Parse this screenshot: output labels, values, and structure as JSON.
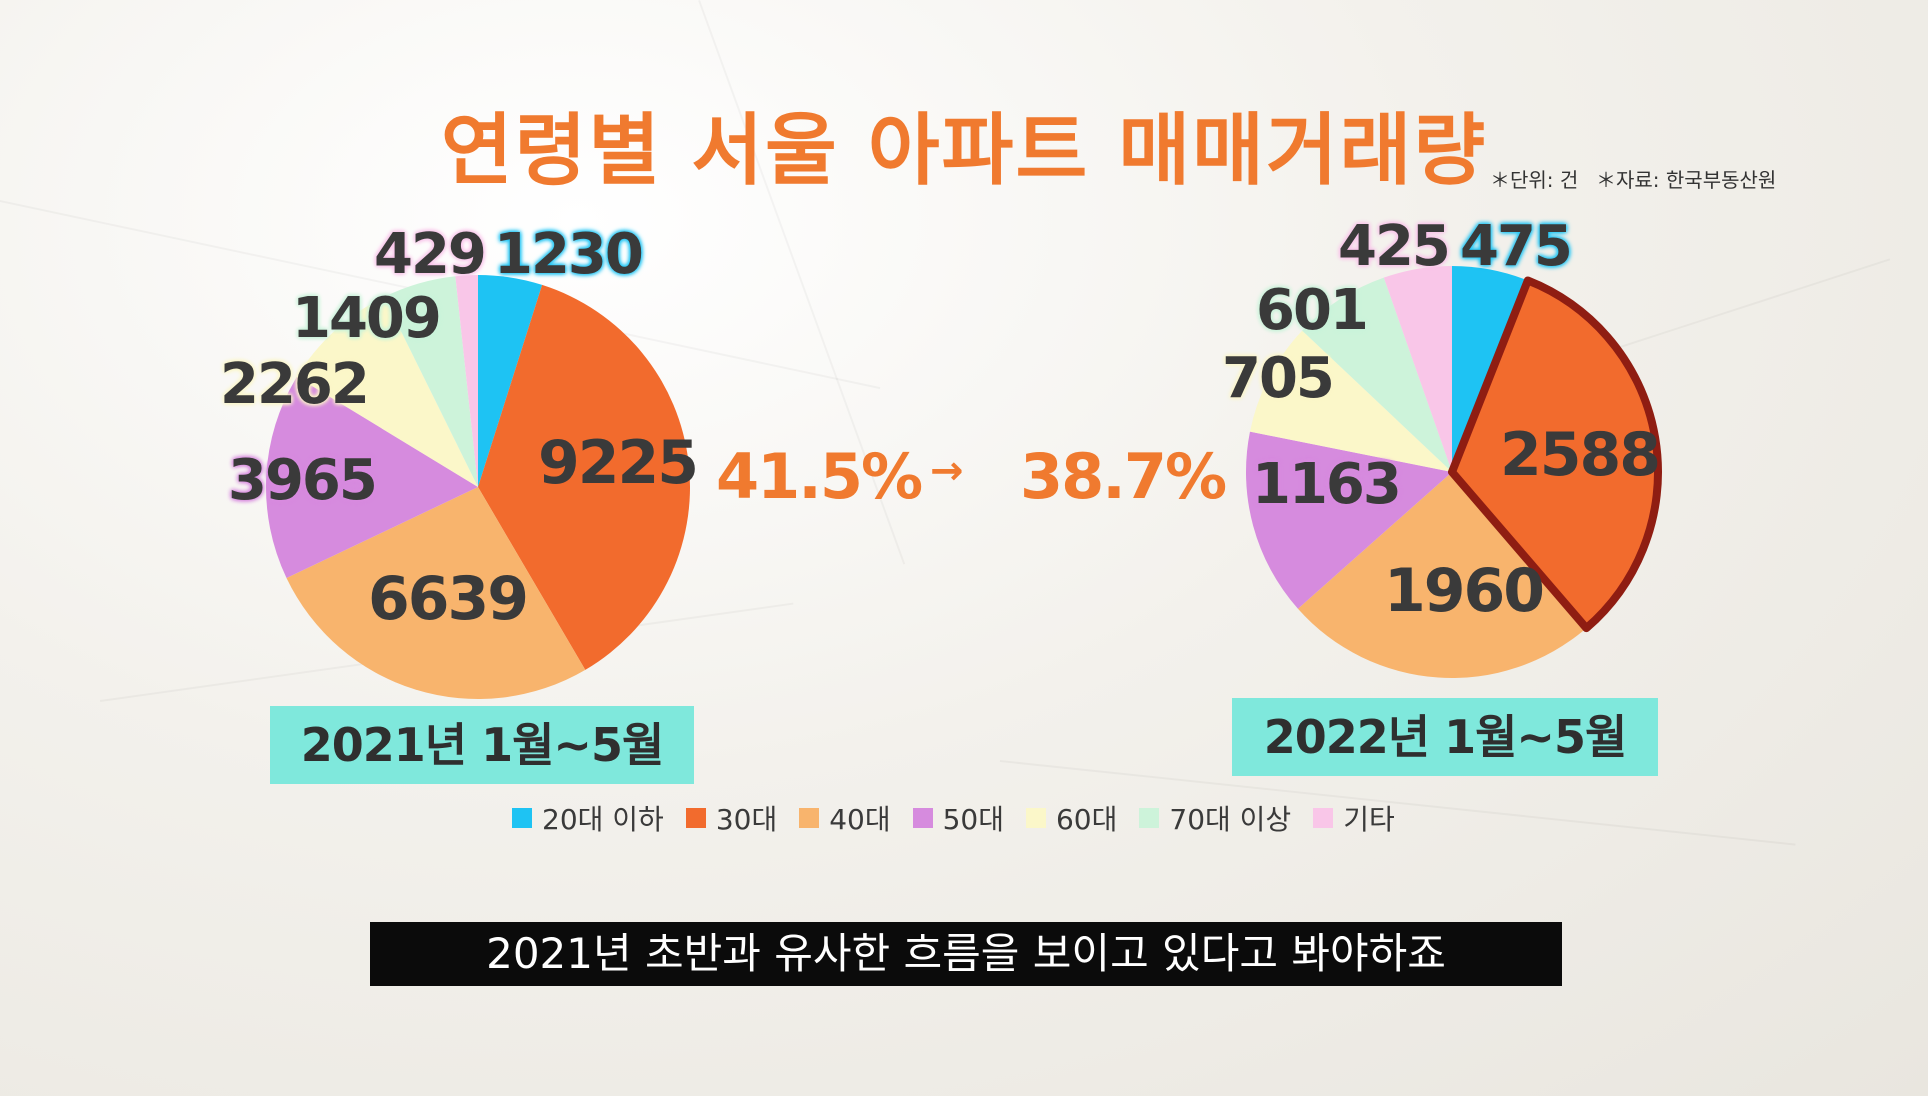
{
  "title": "연령별 서울 아파트 매매거래량",
  "notes": {
    "unit": "＊단위: 건",
    "source": "＊자료: 한국부동산원"
  },
  "comparison": {
    "from": "41.5%",
    "arrow": "→",
    "to": "38.7%"
  },
  "subtitle": "2021년 초반과 유사한 흐름을 보이고 있다고 봐야하죠",
  "chart_data": [
    {
      "type": "pie",
      "title": "2021년 1월~5월",
      "categories": [
        "20대 이하",
        "30대",
        "40대",
        "50대",
        "60대",
        "70대 이상",
        "기타"
      ],
      "values": [
        1230,
        9225,
        6639,
        3965,
        2262,
        1409,
        429
      ],
      "colors": [
        "#1ec3f3",
        "#f26b2d",
        "#f8b46d",
        "#d68bde",
        "#fbf7c9",
        "#cdf3da",
        "#f9c6e8"
      ]
    },
    {
      "type": "pie",
      "title": "2022년 1월~5월",
      "categories": [
        "20대 이하",
        "30대",
        "40대",
        "50대",
        "60대",
        "70대 이상",
        "기타"
      ],
      "values": [
        475,
        2588,
        1960,
        1163,
        705,
        601,
        425
      ],
      "colors": [
        "#1ec3f3",
        "#f26b2d",
        "#f8b46d",
        "#d68bde",
        "#fbf7c9",
        "#cdf3da",
        "#f9c6e8"
      ],
      "highlight": "30대"
    }
  ],
  "legend": [
    {
      "label": "20대 이하",
      "color": "#1ec3f3"
    },
    {
      "label": "30대",
      "color": "#f26b2d"
    },
    {
      "label": "40대",
      "color": "#f8b46d"
    },
    {
      "label": "50대",
      "color": "#d68bde"
    },
    {
      "label": "60대",
      "color": "#fbf7c9"
    },
    {
      "label": "70대 이상",
      "color": "#cdf3da"
    },
    {
      "label": "기타",
      "color": "#f9c6e8"
    }
  ]
}
